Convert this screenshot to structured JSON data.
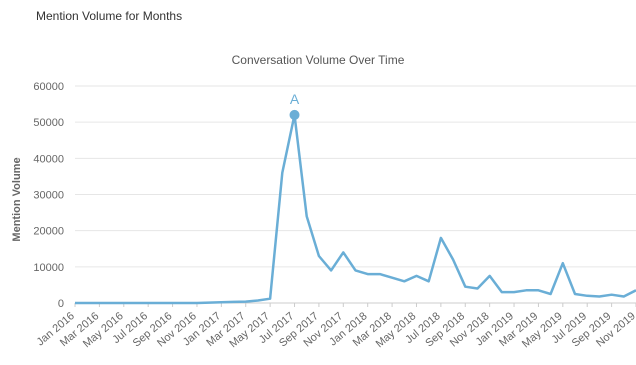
{
  "header": {
    "title": "Mention Volume for Months"
  },
  "chart_data": {
    "type": "line",
    "title": "Conversation Volume Over Time",
    "xlabel": "",
    "ylabel": "Mention Volume",
    "ylim": [
      0,
      60000
    ],
    "yticks": [
      0,
      10000,
      20000,
      30000,
      40000,
      50000,
      60000
    ],
    "grid": true,
    "line_color": "#6aaed6",
    "x": [
      "Jan 2016",
      "Feb 2016",
      "Mar 2016",
      "Apr 2016",
      "May 2016",
      "Jun 2016",
      "Jul 2016",
      "Aug 2016",
      "Sep 2016",
      "Oct 2016",
      "Nov 2016",
      "Dec 2016",
      "Jan 2017",
      "Feb 2017",
      "Mar 2017",
      "Apr 2017",
      "May 2017",
      "Jun 2017",
      "Jul 2017",
      "Aug 2017",
      "Sep 2017",
      "Oct 2017",
      "Nov 2017",
      "Dec 2017",
      "Jan 2018",
      "Feb 2018",
      "Mar 2018",
      "Apr 2018",
      "May 2018",
      "Jun 2018",
      "Jul 2018",
      "Aug 2018",
      "Sep 2018",
      "Oct 2018",
      "Nov 2018",
      "Dec 2018",
      "Jan 2019",
      "Feb 2019",
      "Mar 2019",
      "Apr 2019",
      "May 2019",
      "Jun 2019",
      "Jul 2019",
      "Aug 2019",
      "Sep 2019",
      "Oct 2019",
      "Nov 2019"
    ],
    "xtick_labels": [
      "Jan 2016",
      "Mar 2016",
      "May 2016",
      "Jul 2016",
      "Sep 2016",
      "Nov 2016",
      "Jan 2017",
      "Mar 2017",
      "May 2017",
      "Jul 2017",
      "Sep 2017",
      "Nov 2017",
      "Jan 2018",
      "Mar 2018",
      "May 2018",
      "Jul 2018",
      "Sep 2018",
      "Nov 2018",
      "Jan 2019",
      "Mar 2019",
      "May 2019",
      "Jul 2019",
      "Sep 2019",
      "Nov 2019"
    ],
    "series": [
      {
        "values": [
          0,
          0,
          0,
          0,
          0,
          0,
          0,
          0,
          0,
          0,
          0,
          100,
          200,
          300,
          400,
          700,
          1200,
          36000,
          52000,
          24000,
          13000,
          9000,
          14000,
          9000,
          8000,
          8000,
          7000,
          6000,
          7500,
          6000,
          18000,
          12000,
          4500,
          4000,
          7500,
          3000,
          3000,
          3500,
          3500,
          2500,
          11000,
          2500,
          2000,
          1800,
          2300,
          1800,
          3500
        ]
      }
    ],
    "annotations": [
      {
        "label": "A",
        "x": "Jul 2017",
        "y": 52000
      }
    ]
  }
}
